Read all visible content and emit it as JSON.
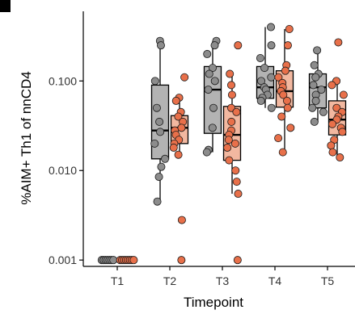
{
  "chart_data": {
    "type": "box",
    "title": "",
    "xlabel": "Timepoint",
    "ylabel": "%AIM+ Th1 of nnCD4",
    "y_scale": "log",
    "ylim": [
      0.00085,
      0.6
    ],
    "y_ticks": [
      0.001,
      0.01,
      0.1
    ],
    "y_tick_labels": [
      "0.001",
      "0.010",
      "0.100"
    ],
    "categories": [
      "T1",
      "T2",
      "T3",
      "T4",
      "T5"
    ],
    "grid": false,
    "legend": "none",
    "series": [
      {
        "color": "#b3b3b3",
        "boxes": [
          {
            "category": "T1",
            "q1": 0.001,
            "median": 0.001,
            "q3": 0.001,
            "whisker_low": 0.001,
            "whisker_high": 0.001
          },
          {
            "category": "T2",
            "q1": 0.0135,
            "median": 0.028,
            "q3": 0.09,
            "whisker_low": 0.0045,
            "whisker_high": 0.28
          },
          {
            "category": "T3",
            "q1": 0.026,
            "median": 0.08,
            "q3": 0.145,
            "whisker_low": 0.016,
            "whisker_high": 0.28
          },
          {
            "category": "T4",
            "q1": 0.064,
            "median": 0.085,
            "q3": 0.145,
            "whisker_low": 0.05,
            "whisker_high": 0.4
          },
          {
            "category": "T5",
            "q1": 0.05,
            "median": 0.085,
            "q3": 0.12,
            "whisker_low": 0.035,
            "whisker_high": 0.22
          }
        ],
        "points": {
          "T1": [
            0.001,
            0.001,
            0.001,
            0.001,
            0.001,
            0.001,
            0.001
          ],
          "T2": [
            0.28,
            0.25,
            0.1,
            0.05,
            0.035,
            0.027,
            0.02,
            0.0135,
            0.011,
            0.0085,
            0.0045
          ],
          "T3": [
            0.28,
            0.25,
            0.2,
            0.14,
            0.12,
            0.1,
            0.08,
            0.05,
            0.03,
            0.017,
            0.016
          ],
          "T4": [
            0.4,
            0.25,
            0.18,
            0.14,
            0.11,
            0.1,
            0.085,
            0.08,
            0.07,
            0.065,
            0.06,
            0.05
          ],
          "T5": [
            0.22,
            0.15,
            0.12,
            0.11,
            0.09,
            0.08,
            0.07,
            0.06,
            0.05,
            0.045,
            0.035
          ]
        }
      },
      {
        "color": "#f2b8a0",
        "point_color": "#e8704a",
        "boxes": [
          {
            "category": "T1",
            "q1": 0.001,
            "median": 0.001,
            "q3": 0.001,
            "whisker_low": 0.001,
            "whisker_high": 0.001
          },
          {
            "category": "T2",
            "q1": 0.02,
            "median": 0.03,
            "q3": 0.041,
            "whisker_low": 0.015,
            "whisker_high": 0.065
          },
          {
            "category": "T3",
            "q1": 0.013,
            "median": 0.025,
            "q3": 0.052,
            "whisker_low": 0.0055,
            "whisker_high": 0.12
          },
          {
            "category": "T4",
            "q1": 0.051,
            "median": 0.077,
            "q3": 0.13,
            "whisker_low": 0.016,
            "whisker_high": 0.38
          },
          {
            "category": "T5",
            "q1": 0.025,
            "median": 0.037,
            "q3": 0.06,
            "whisker_low": 0.014,
            "whisker_high": 0.1
          }
        ],
        "points": {
          "T1": [
            0.001,
            0.001,
            0.001,
            0.001,
            0.001,
            0.001,
            0.001,
            0.001
          ],
          "T2": [
            0.11,
            0.065,
            0.06,
            0.045,
            0.04,
            0.035,
            0.03,
            0.028,
            0.025,
            0.022,
            0.02,
            0.018,
            0.015,
            0.0028,
            0.001
          ],
          "T3": [
            0.25,
            0.12,
            0.09,
            0.07,
            0.05,
            0.045,
            0.035,
            0.028,
            0.025,
            0.022,
            0.02,
            0.018,
            0.013,
            0.01,
            0.0075,
            0.0055,
            0.001
          ],
          "T4": [
            0.38,
            0.25,
            0.15,
            0.13,
            0.11,
            0.095,
            0.085,
            0.077,
            0.07,
            0.06,
            0.05,
            0.04,
            0.03,
            0.023,
            0.016
          ],
          "T5": [
            0.27,
            0.1,
            0.09,
            0.07,
            0.05,
            0.045,
            0.04,
            0.037,
            0.033,
            0.03,
            0.027,
            0.022,
            0.019,
            0.016,
            0.014
          ]
        }
      }
    ]
  }
}
